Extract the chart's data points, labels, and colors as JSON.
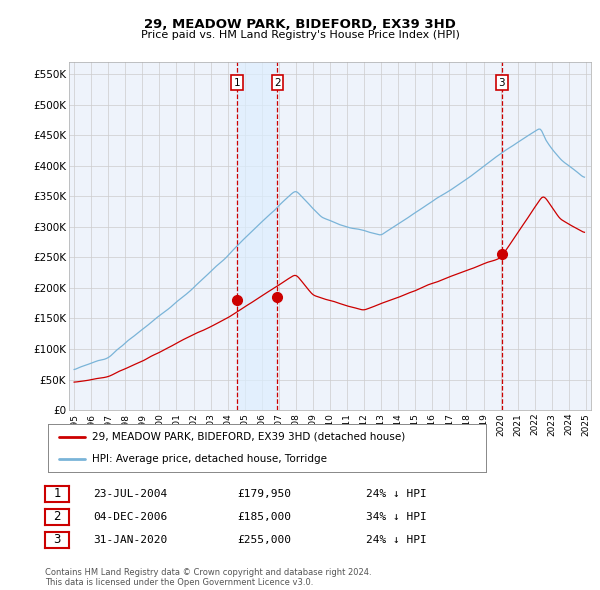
{
  "title": "29, MEADOW PARK, BIDEFORD, EX39 3HD",
  "subtitle": "Price paid vs. HM Land Registry's House Price Index (HPI)",
  "legend_entries": [
    "29, MEADOW PARK, BIDEFORD, EX39 3HD (detached house)",
    "HPI: Average price, detached house, Torridge"
  ],
  "table_rows": [
    {
      "num": "1",
      "date": "23-JUL-2004",
      "price": "£179,950",
      "hpi": "24% ↓ HPI"
    },
    {
      "num": "2",
      "date": "04-DEC-2006",
      "price": "£185,000",
      "hpi": "34% ↓ HPI"
    },
    {
      "num": "3",
      "date": "31-JAN-2020",
      "price": "£255,000",
      "hpi": "24% ↓ HPI"
    }
  ],
  "footnote": "Contains HM Land Registry data © Crown copyright and database right 2024.\nThis data is licensed under the Open Government Licence v3.0.",
  "sale_dates_num": [
    2004.55,
    2006.92,
    2020.08
  ],
  "sale_prices": [
    179950,
    185000,
    255000
  ],
  "sale_labels": [
    "1",
    "2",
    "3"
  ],
  "hpi_color": "#7ab4d8",
  "sale_color": "#cc0000",
  "vline_color": "#cc0000",
  "shade_color": "#ddeeff",
  "grid_color": "#cccccc",
  "background_color": "#eef3fb",
  "ylim": [
    0,
    570000
  ],
  "xlim_start": 1994.7,
  "xlim_end": 2025.3,
  "yticks": [
    0,
    50000,
    100000,
    150000,
    200000,
    250000,
    300000,
    350000,
    400000,
    450000,
    500000,
    550000
  ],
  "ytick_labels": [
    "£0",
    "£50K",
    "£100K",
    "£150K",
    "£200K",
    "£250K",
    "£300K",
    "£350K",
    "£400K",
    "£450K",
    "£500K",
    "£550K"
  ]
}
